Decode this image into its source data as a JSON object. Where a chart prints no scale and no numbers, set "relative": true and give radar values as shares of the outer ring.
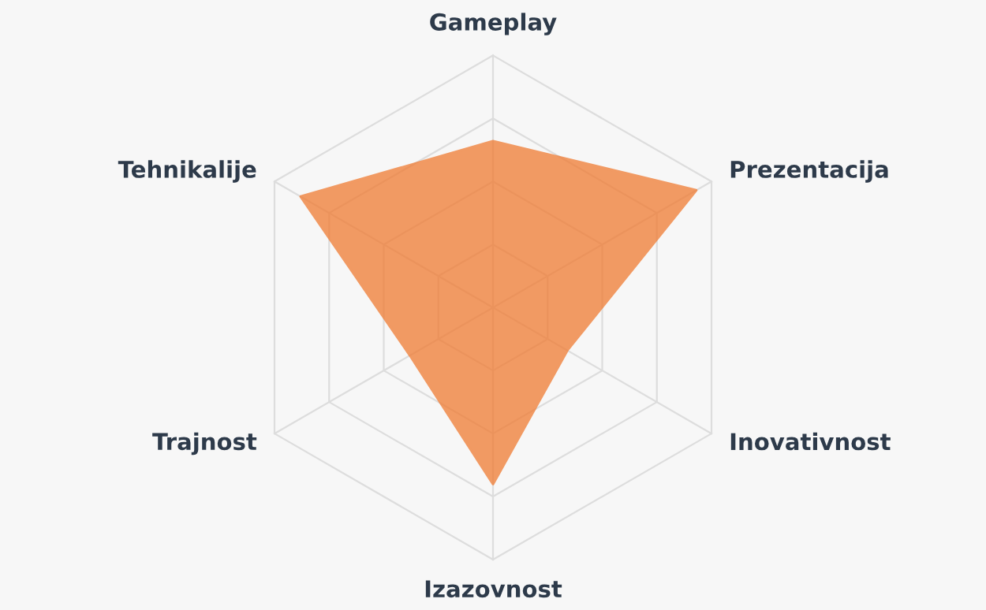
{
  "chart_data": {
    "type": "radar",
    "relative": true,
    "categories": [
      "Gameplay",
      "Prezentacija",
      "Inovativnost",
      "Izazovnost",
      "Trajnost",
      "Tehnikalije"
    ],
    "series": [
      {
        "color": "#f07b32",
        "values": [
          0.66,
          0.93,
          0.34,
          0.7,
          0.38,
          0.88
        ]
      }
    ],
    "grid": true
  }
}
